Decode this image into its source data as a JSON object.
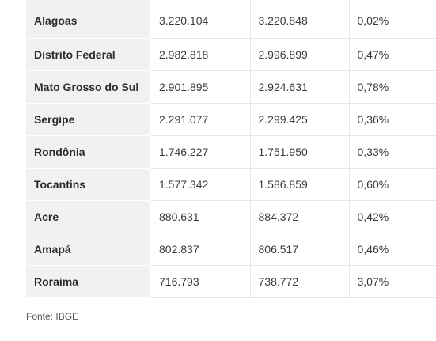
{
  "table": {
    "rows": [
      {
        "state": "Alagoas",
        "pop_a": "3.220.104",
        "pop_b": "3.220.848",
        "change": "0,02%"
      },
      {
        "state": "Distrito Federal",
        "pop_a": "2.982.818",
        "pop_b": "2.996.899",
        "change": "0,47%"
      },
      {
        "state": "Mato Grosso do Sul",
        "pop_a": "2.901.895",
        "pop_b": "2.924.631",
        "change": "0,78%"
      },
      {
        "state": "Sergipe",
        "pop_a": "2.291.077",
        "pop_b": "2.299.425",
        "change": "0,36%"
      },
      {
        "state": "Rondônia",
        "pop_a": "1.746.227",
        "pop_b": "1.751.950",
        "change": "0,33%"
      },
      {
        "state": "Tocantins",
        "pop_a": "1.577.342",
        "pop_b": "1.586.859",
        "change": "0,60%"
      },
      {
        "state": "Acre",
        "pop_a": "880.631",
        "pop_b": "884.372",
        "change": "0,42%"
      },
      {
        "state": "Amapá",
        "pop_a": "802.837",
        "pop_b": "806.517",
        "change": "0,46%"
      },
      {
        "state": "Roraima",
        "pop_a": "716.793",
        "pop_b": "738.772",
        "change": "3,07%"
      }
    ]
  },
  "source_text": "Fonte: IBGE"
}
